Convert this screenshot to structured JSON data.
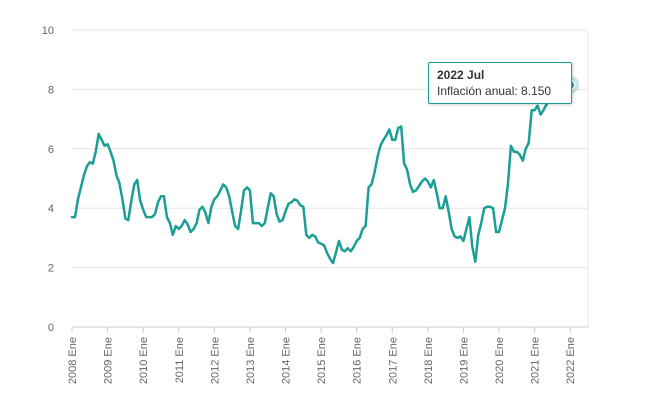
{
  "chart_data": {
    "type": "line",
    "title": "",
    "xlabel": "",
    "ylabel": "",
    "ylim": [
      0,
      10
    ],
    "yticks": [
      0,
      2,
      4,
      6,
      8,
      10
    ],
    "xlim": [
      "2008-01",
      "2022-07"
    ],
    "xtick_labels": [
      "2008 Ene",
      "2009 Ene",
      "2010 Ene",
      "2011 Ene",
      "2012 Ene",
      "2013 Ene",
      "2014 Ene",
      "2015 Ene",
      "2016 Ene",
      "2017 Ene",
      "2018 Ene",
      "2019 Ene",
      "2020 Ene",
      "2021 Ene",
      "2022 Ene"
    ],
    "grid": "horizontal",
    "legend": "none",
    "series": [
      {
        "color": "#1a9e96",
        "points": [
          [
            "2008-01",
            3.7
          ],
          [
            "2008-02",
            3.7
          ],
          [
            "2008-03",
            4.3
          ],
          [
            "2008-04",
            4.7
          ],
          [
            "2008-05",
            5.1
          ],
          [
            "2008-06",
            5.4
          ],
          [
            "2008-07",
            5.55
          ],
          [
            "2008-08",
            5.5
          ],
          [
            "2008-09",
            5.9
          ],
          [
            "2008-10",
            6.5
          ],
          [
            "2008-11",
            6.3
          ],
          [
            "2008-12",
            6.1
          ],
          [
            "2009-01",
            6.15
          ],
          [
            "2009-02",
            5.9
          ],
          [
            "2009-03",
            5.6
          ],
          [
            "2009-04",
            5.1
          ],
          [
            "2009-05",
            4.85
          ],
          [
            "2009-06",
            4.3
          ],
          [
            "2009-07",
            3.65
          ],
          [
            "2009-08",
            3.6
          ],
          [
            "2009-09",
            4.25
          ],
          [
            "2009-10",
            4.8
          ],
          [
            "2009-11",
            4.95
          ],
          [
            "2009-12",
            4.25
          ],
          [
            "2010-01",
            3.95
          ],
          [
            "2010-02",
            3.7
          ],
          [
            "2010-03",
            3.7
          ],
          [
            "2010-04",
            3.7
          ],
          [
            "2010-05",
            3.8
          ],
          [
            "2010-06",
            4.2
          ],
          [
            "2010-07",
            4.4
          ],
          [
            "2010-08",
            4.4
          ],
          [
            "2010-09",
            3.7
          ],
          [
            "2010-10",
            3.5
          ],
          [
            "2010-11",
            3.1
          ],
          [
            "2010-12",
            3.4
          ],
          [
            "2011-01",
            3.3
          ],
          [
            "2011-02",
            3.4
          ],
          [
            "2011-03",
            3.6
          ],
          [
            "2011-04",
            3.45
          ],
          [
            "2011-05",
            3.2
          ],
          [
            "2011-06",
            3.3
          ],
          [
            "2011-07",
            3.5
          ],
          [
            "2011-08",
            3.95
          ],
          [
            "2011-09",
            4.05
          ],
          [
            "2011-10",
            3.85
          ],
          [
            "2011-11",
            3.5
          ],
          [
            "2011-12",
            4.05
          ],
          [
            "2012-01",
            4.3
          ],
          [
            "2012-02",
            4.4
          ],
          [
            "2012-03",
            4.6
          ],
          [
            "2012-04",
            4.8
          ],
          [
            "2012-05",
            4.7
          ],
          [
            "2012-06",
            4.4
          ],
          [
            "2012-07",
            3.9
          ],
          [
            "2012-08",
            3.4
          ],
          [
            "2012-09",
            3.3
          ],
          [
            "2012-10",
            3.9
          ],
          [
            "2012-11",
            4.6
          ],
          [
            "2012-12",
            4.7
          ],
          [
            "2013-01",
            4.6
          ],
          [
            "2013-02",
            3.5
          ],
          [
            "2013-03",
            3.5
          ],
          [
            "2013-04",
            3.5
          ],
          [
            "2013-05",
            3.4
          ],
          [
            "2013-06",
            3.5
          ],
          [
            "2013-07",
            4.0
          ],
          [
            "2013-08",
            4.5
          ],
          [
            "2013-09",
            4.4
          ],
          [
            "2013-10",
            3.8
          ],
          [
            "2013-11",
            3.55
          ],
          [
            "2013-12",
            3.6
          ],
          [
            "2014-01",
            3.9
          ],
          [
            "2014-02",
            4.15
          ],
          [
            "2014-03",
            4.2
          ],
          [
            "2014-04",
            4.3
          ],
          [
            "2014-05",
            4.25
          ],
          [
            "2014-06",
            4.1
          ],
          [
            "2014-07",
            4.05
          ],
          [
            "2014-08",
            3.1
          ],
          [
            "2014-09",
            3.0
          ],
          [
            "2014-10",
            3.1
          ],
          [
            "2014-11",
            3.05
          ],
          [
            "2014-12",
            2.85
          ],
          [
            "2015-01",
            2.8
          ],
          [
            "2015-02",
            2.75
          ],
          [
            "2015-03",
            2.5
          ],
          [
            "2015-04",
            2.3
          ],
          [
            "2015-05",
            2.15
          ],
          [
            "2015-06",
            2.5
          ],
          [
            "2015-07",
            2.9
          ],
          [
            "2015-08",
            2.6
          ],
          [
            "2015-09",
            2.55
          ],
          [
            "2015-10",
            2.65
          ],
          [
            "2015-11",
            2.55
          ],
          [
            "2015-12",
            2.7
          ],
          [
            "2016-01",
            2.9
          ],
          [
            "2016-02",
            3.0
          ],
          [
            "2016-03",
            3.3
          ],
          [
            "2016-04",
            3.4
          ],
          [
            "2016-05",
            4.7
          ],
          [
            "2016-06",
            4.8
          ],
          [
            "2016-07",
            5.2
          ],
          [
            "2016-08",
            5.7
          ],
          [
            "2016-09",
            6.1
          ],
          [
            "2016-10",
            6.3
          ],
          [
            "2016-11",
            6.45
          ],
          [
            "2016-12",
            6.65
          ],
          [
            "2017-01",
            6.3
          ],
          [
            "2017-02",
            6.3
          ],
          [
            "2017-03",
            6.7
          ],
          [
            "2017-04",
            6.75
          ],
          [
            "2017-05",
            5.5
          ],
          [
            "2017-06",
            5.3
          ],
          [
            "2017-07",
            4.8
          ],
          [
            "2017-08",
            4.55
          ],
          [
            "2017-09",
            4.6
          ],
          [
            "2017-10",
            4.75
          ],
          [
            "2017-11",
            4.9
          ],
          [
            "2017-12",
            5.0
          ],
          [
            "2018-01",
            4.9
          ],
          [
            "2018-02",
            4.7
          ],
          [
            "2018-03",
            4.95
          ],
          [
            "2018-04",
            4.5
          ],
          [
            "2018-05",
            4.0
          ],
          [
            "2018-06",
            4.0
          ],
          [
            "2018-07",
            4.4
          ],
          [
            "2018-08",
            3.9
          ],
          [
            "2018-09",
            3.3
          ],
          [
            "2018-10",
            3.05
          ],
          [
            "2018-11",
            3.0
          ],
          [
            "2018-12",
            3.05
          ],
          [
            "2019-01",
            2.9
          ],
          [
            "2019-02",
            3.3
          ],
          [
            "2019-03",
            3.7
          ],
          [
            "2019-04",
            2.7
          ],
          [
            "2019-05",
            2.2
          ],
          [
            "2019-06",
            3.1
          ],
          [
            "2019-07",
            3.5
          ],
          [
            "2019-08",
            4.0
          ],
          [
            "2019-09",
            4.05
          ],
          [
            "2019-10",
            4.05
          ],
          [
            "2019-11",
            4.0
          ],
          [
            "2019-12",
            3.2
          ],
          [
            "2020-01",
            3.2
          ],
          [
            "2020-02",
            3.6
          ],
          [
            "2020-03",
            4.0
          ],
          [
            "2020-04",
            4.8
          ],
          [
            "2020-05",
            6.1
          ],
          [
            "2020-06",
            5.9
          ],
          [
            "2020-07",
            5.9
          ],
          [
            "2020-08",
            5.8
          ],
          [
            "2020-09",
            5.6
          ],
          [
            "2020-10",
            6.0
          ],
          [
            "2020-11",
            6.2
          ],
          [
            "2020-12",
            7.3
          ],
          [
            "2021-01",
            7.3
          ],
          [
            "2021-02",
            7.45
          ],
          [
            "2021-03",
            7.15
          ],
          [
            "2021-04",
            7.3
          ],
          [
            "2021-05",
            7.5
          ],
          [
            "2021-06",
            7.6
          ],
          [
            "2021-07",
            7.7
          ],
          [
            "2021-08",
            7.7
          ],
          [
            "2021-09",
            7.65
          ],
          [
            "2021-10",
            7.85
          ],
          [
            "2021-11",
            7.8
          ],
          [
            "2021-12",
            8.0
          ],
          [
            "2022-01",
            8.15
          ]
        ]
      }
    ],
    "tooltip": {
      "title": "2022 Jul",
      "text": "Inflación anual: 8.150"
    }
  }
}
